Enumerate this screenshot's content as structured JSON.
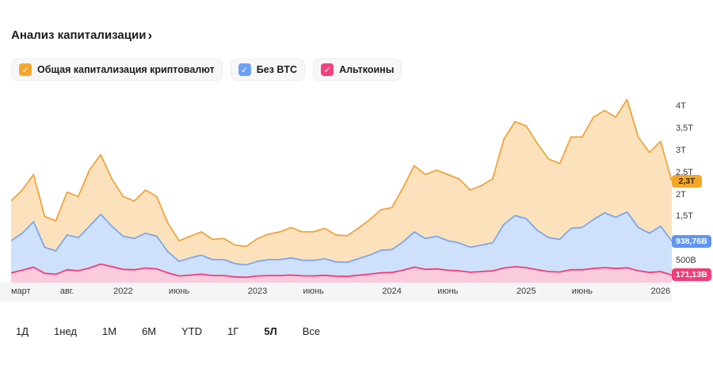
{
  "title": "Анализ капитализации",
  "title_chevron": "›",
  "legend": {
    "items": [
      {
        "label": "Общая капитализация криптовалют",
        "color": "#f5a62a"
      },
      {
        "label": "Без BTC",
        "color": "#6ea0f5"
      },
      {
        "label": "Альткоины",
        "color": "#f5407e"
      }
    ]
  },
  "range_buttons": [
    {
      "label": "1Д",
      "selected": false
    },
    {
      "label": "1нед",
      "selected": false
    },
    {
      "label": "1М",
      "selected": false
    },
    {
      "label": "6М",
      "selected": false
    },
    {
      "label": "YTD",
      "selected": false
    },
    {
      "label": "1Г",
      "selected": false
    },
    {
      "label": "5Л",
      "selected": true
    },
    {
      "label": "Все",
      "selected": false
    }
  ],
  "chart_data": {
    "type": "area",
    "title": "Анализ капитализации",
    "unit": "USD (T = триллионы, B = миллиарды)",
    "x_unit": "month",
    "x_start": "2021-03",
    "ylim": [
      0,
      4360
    ],
    "grid": false,
    "legend_position": "top",
    "x_ticks": [
      {
        "label": "март",
        "m": 0
      },
      {
        "label": "авг.",
        "m": 5
      },
      {
        "label": "2022",
        "m": 10
      },
      {
        "label": "июнь",
        "m": 15
      },
      {
        "label": "2023",
        "m": 22
      },
      {
        "label": "июнь",
        "m": 27
      },
      {
        "label": "2024",
        "m": 34
      },
      {
        "label": "июнь",
        "m": 39
      },
      {
        "label": "2025",
        "m": 46
      },
      {
        "label": "июнь",
        "m": 51
      },
      {
        "label": "2026",
        "m": 58
      }
    ],
    "y_ticks": [
      {
        "label": "4T",
        "value": 4000
      },
      {
        "label": "3,5T",
        "value": 3500
      },
      {
        "label": "3T",
        "value": 3000
      },
      {
        "label": "2,5T",
        "value": 2500
      },
      {
        "label": "2T",
        "value": 2000
      },
      {
        "label": "1,5T",
        "value": 1500
      },
      {
        "label": "500B",
        "value": 500
      }
    ],
    "series": [
      {
        "name": "Общая капитализация криптовалют",
        "color": "#f2a33c",
        "fill": "#fbe2bc",
        "badge_color": "#f5a62a",
        "badge_text": "#3d2a00",
        "current_label": "2,3T",
        "values": [
          1850,
          2100,
          2450,
          1500,
          1400,
          2050,
          1950,
          2550,
          2900,
          2350,
          1950,
          1850,
          2100,
          1950,
          1350,
          950,
          1050,
          1150,
          980,
          1000,
          850,
          820,
          1000,
          1100,
          1150,
          1250,
          1150,
          1150,
          1230,
          1080,
          1060,
          1230,
          1420,
          1650,
          1700,
          2150,
          2650,
          2450,
          2550,
          2450,
          2350,
          2100,
          2200,
          2350,
          3250,
          3650,
          3550,
          3150,
          2800,
          2700,
          3300,
          3300,
          3750,
          3900,
          3750,
          4150,
          3300,
          2950,
          3200,
          2300
        ]
      },
      {
        "name": "Без BTC",
        "color": "#7aa7f0",
        "fill": "#cfe0fa",
        "badge_color": "#5f96f2",
        "badge_text": "#ffffff",
        "current_label": "938,76B",
        "values": [
          950,
          1120,
          1380,
          800,
          720,
          1080,
          1020,
          1280,
          1550,
          1280,
          1050,
          1000,
          1120,
          1050,
          700,
          480,
          560,
          620,
          520,
          520,
          430,
          400,
          480,
          520,
          520,
          560,
          510,
          500,
          540,
          470,
          460,
          540,
          620,
          730,
          750,
          920,
          1150,
          1000,
          1050,
          950,
          900,
          800,
          850,
          900,
          1320,
          1520,
          1450,
          1180,
          1020,
          980,
          1230,
          1250,
          1430,
          1580,
          1480,
          1600,
          1250,
          1120,
          1280,
          938.76
        ]
      },
      {
        "name": "Альткоины",
        "color": "#f23d79",
        "fill": "#f9cbdd",
        "badge_color": "#f23d79",
        "badge_text": "#ffffff",
        "current_label": "171,13B",
        "values": [
          220,
          280,
          350,
          210,
          190,
          290,
          270,
          330,
          420,
          360,
          300,
          290,
          330,
          310,
          220,
          150,
          170,
          190,
          160,
          160,
          130,
          120,
          150,
          160,
          160,
          170,
          155,
          150,
          165,
          145,
          140,
          165,
          190,
          220,
          230,
          280,
          350,
          300,
          310,
          280,
          265,
          235,
          250,
          265,
          330,
          360,
          340,
          290,
          250,
          240,
          290,
          290,
          320,
          340,
          320,
          335,
          270,
          230,
          250,
          171.13
        ]
      }
    ]
  }
}
